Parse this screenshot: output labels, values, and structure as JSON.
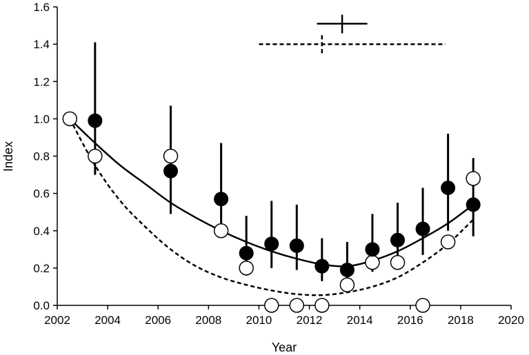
{
  "chart_data": {
    "type": "scatter",
    "title": "",
    "xlabel": "Year",
    "ylabel": "Index",
    "xlim": [
      2002,
      2020
    ],
    "ylim": [
      0.0,
      1.6
    ],
    "x_ticks": [
      2002,
      2004,
      2006,
      2008,
      2010,
      2012,
      2014,
      2016,
      2018,
      2020
    ],
    "x_tick_labels": [
      "2002",
      "2004",
      "2006",
      "2008",
      "2010",
      "2012",
      "2014",
      "2016",
      "2018",
      "2020"
    ],
    "y_ticks": [
      0.0,
      0.2,
      0.4,
      0.6,
      0.8,
      1.0,
      1.2,
      1.4,
      1.6
    ],
    "y_tick_labels": [
      "0.0",
      "0.2",
      "0.4",
      "0.6",
      "0.8",
      "1.0",
      "1.2",
      "1.4",
      "1.6"
    ],
    "grid": false,
    "legend": "none",
    "series": [
      {
        "marker": "filled-circle",
        "color": "#000000",
        "points": [
          {
            "x": 2003.5,
            "y": 0.99,
            "lo": 0.7,
            "hi": 1.41
          },
          {
            "x": 2006.5,
            "y": 0.72,
            "lo": 0.49,
            "hi": 1.07
          },
          {
            "x": 2008.5,
            "y": 0.57,
            "lo": 0.38,
            "hi": 0.87
          },
          {
            "x": 2009.5,
            "y": 0.28,
            "lo": 0.16,
            "hi": 0.48
          },
          {
            "x": 2010.5,
            "y": 0.33,
            "lo": 0.2,
            "hi": 0.56
          },
          {
            "x": 2011.5,
            "y": 0.32,
            "lo": 0.19,
            "hi": 0.54
          },
          {
            "x": 2012.5,
            "y": 0.21,
            "lo": 0.13,
            "hi": 0.36
          },
          {
            "x": 2013.5,
            "y": 0.19,
            "lo": 0.11,
            "hi": 0.34
          },
          {
            "x": 2014.5,
            "y": 0.3,
            "lo": 0.18,
            "hi": 0.49
          },
          {
            "x": 2015.5,
            "y": 0.35,
            "lo": 0.21,
            "hi": 0.55
          },
          {
            "x": 2016.5,
            "y": 0.41,
            "lo": 0.27,
            "hi": 0.63
          },
          {
            "x": 2017.5,
            "y": 0.63,
            "lo": 0.4,
            "hi": 0.92
          },
          {
            "x": 2018.5,
            "y": 0.54,
            "lo": 0.37,
            "hi": 0.79
          }
        ]
      },
      {
        "marker": "open-circle",
        "color": "#000000",
        "points": [
          {
            "x": 2002.5,
            "y": 1.0
          },
          {
            "x": 2003.5,
            "y": 0.8
          },
          {
            "x": 2006.5,
            "y": 0.8
          },
          {
            "x": 2008.5,
            "y": 0.4
          },
          {
            "x": 2009.5,
            "y": 0.2
          },
          {
            "x": 2010.5,
            "y": 0.0
          },
          {
            "x": 2011.5,
            "y": 0.0
          },
          {
            "x": 2012.5,
            "y": 0.0
          },
          {
            "x": 2013.5,
            "y": 0.11
          },
          {
            "x": 2014.5,
            "y": 0.23
          },
          {
            "x": 2015.5,
            "y": 0.23
          },
          {
            "x": 2016.5,
            "y": 0.0
          },
          {
            "x": 2017.5,
            "y": 0.34
          },
          {
            "x": 2018.5,
            "y": 0.68
          }
        ]
      }
    ],
    "fitted_curves": [
      {
        "style": "solid",
        "color": "#000000",
        "x": [
          2002.5,
          2003.5,
          2004.5,
          2005.5,
          2006.5,
          2007.5,
          2008.5,
          2009.5,
          2010.5,
          2011.5,
          2012.5,
          2013.5,
          2014.5,
          2015.5,
          2016.5,
          2017.5,
          2018.5
        ],
        "y": [
          1.0,
          0.87,
          0.75,
          0.65,
          0.55,
          0.47,
          0.4,
          0.34,
          0.29,
          0.25,
          0.22,
          0.21,
          0.24,
          0.29,
          0.36,
          0.44,
          0.54
        ]
      },
      {
        "style": "dashed",
        "color": "#000000",
        "x": [
          2002.5,
          2003.5,
          2004.5,
          2005.5,
          2006.5,
          2007.5,
          2008.5,
          2009.5,
          2010.5,
          2011.5,
          2012.5,
          2013.5,
          2014.5,
          2015.5,
          2016.5,
          2017.5,
          2018.5
        ],
        "y": [
          1.0,
          0.75,
          0.56,
          0.42,
          0.3,
          0.21,
          0.15,
          0.11,
          0.08,
          0.06,
          0.055,
          0.07,
          0.1,
          0.15,
          0.23,
          0.33,
          0.46
        ]
      }
    ],
    "minimum_estimates": [
      {
        "style": "solid",
        "x": 2013.3,
        "x_lo": 2012.3,
        "x_hi": 2014.3,
        "y": 1.51
      },
      {
        "style": "dashed",
        "x": 2012.5,
        "x_lo": 2010.0,
        "x_hi": 2017.4,
        "y": 1.4
      }
    ]
  }
}
